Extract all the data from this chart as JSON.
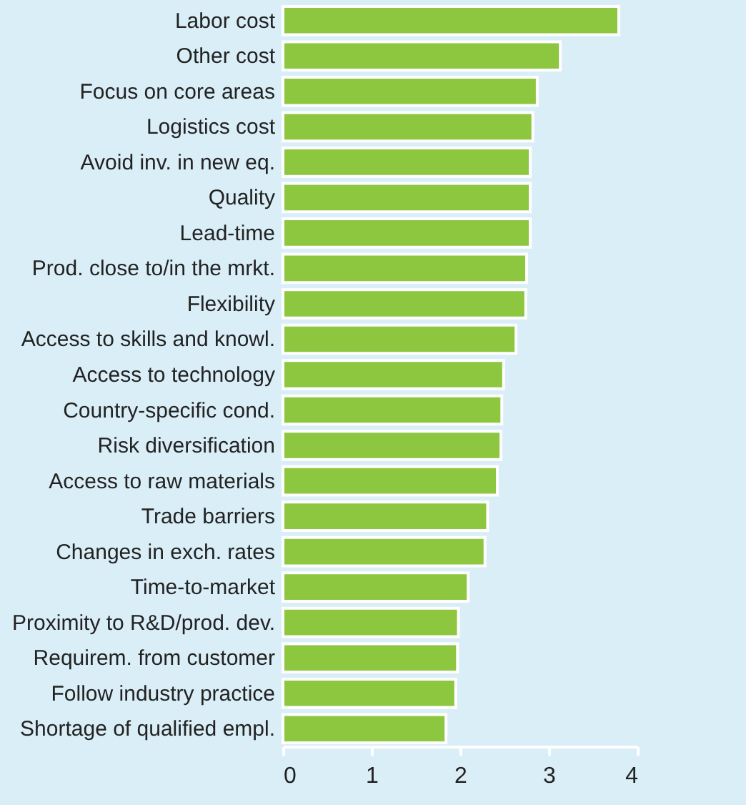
{
  "chart_data": {
    "type": "bar",
    "orientation": "horizontal",
    "categories": [
      "Labor cost",
      "Other cost",
      "Focus on core areas",
      "Logistics cost",
      "Avoid inv. in new eq.",
      "Quality",
      "Lead-time",
      "Prod. close to/in the mrkt.",
      "Flexibility",
      "Access to skills and knowl.",
      "Access to technology",
      "Country-specific cond.",
      "Risk diversification",
      "Access to raw materials",
      "Trade barriers",
      "Changes in exch. rates",
      "Time-to-market",
      "Proximity to R&D/prod. dev.",
      "Requirem. from customer",
      "Follow industry practice",
      "Shortage of qualified empl."
    ],
    "values": [
      3.79,
      3.13,
      2.87,
      2.82,
      2.79,
      2.79,
      2.79,
      2.75,
      2.74,
      2.63,
      2.49,
      2.47,
      2.46,
      2.42,
      2.31,
      2.28,
      2.09,
      1.98,
      1.97,
      1.95,
      1.84
    ],
    "color": "#8dc63f",
    "xlim": [
      0,
      4
    ],
    "xticks": [
      0,
      1,
      2,
      3,
      4
    ],
    "grid": false
  }
}
